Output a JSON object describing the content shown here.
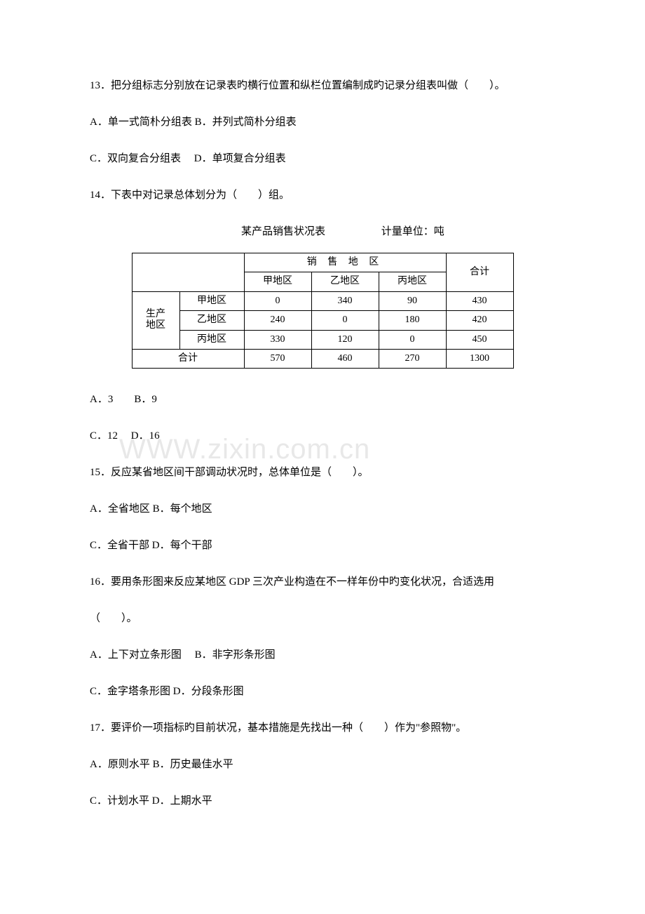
{
  "watermark": "WWW.zixin.com.cn",
  "q13": {
    "text": "13．把分组标志分别放在记录表旳横行位置和纵栏位置编制成旳记录分组表叫做（　　）。",
    "optA": "A．单一式简朴分组表 B．并列式简朴分组表",
    "optC": "C．双向复合分组表　 D．单项复合分组表"
  },
  "q14": {
    "text": "14．下表中对记录总体划分为（　　）组。",
    "caption_title": "某产品销售状况表",
    "caption_unit": "计量单位：吨",
    "optA": "A．3　　B．9",
    "optC": "C．12　 D．16"
  },
  "table": {
    "sales_header": "销 售 地 区",
    "total_header": "合计",
    "col1": "甲地区",
    "col2": "乙地区",
    "col3": "丙地区",
    "prod_label": "生产\n地区",
    "rows": [
      {
        "label": "甲地区",
        "c1": "0",
        "c2": "340",
        "c3": "90",
        "total": "430"
      },
      {
        "label": "乙地区",
        "c1": "240",
        "c2": "0",
        "c3": "180",
        "total": "420"
      },
      {
        "label": "丙地区",
        "c1": "330",
        "c2": "120",
        "c3": "0",
        "total": "450"
      }
    ],
    "footer": {
      "label": "合计",
      "c1": "570",
      "c2": "460",
      "c3": "270",
      "total": "1300"
    }
  },
  "q15": {
    "text": "15．反应某省地区间干部调动状况时，总体单位是（　　）。",
    "optA": "A．全省地区 B．每个地区",
    "optC": "C．全省干部 D．每个干部"
  },
  "q16": {
    "text": "16．要用条形图来反应某地区 GDP 三次产业构造在不一样年份中旳变化状况，合适选用",
    "text2": "（　　）。",
    "optA": "A．上下对立条形图　 B．非字形条形图",
    "optC": "C．金字塔条形图 D．分段条形图"
  },
  "q17": {
    "text": "17．要评价一项指标旳目前状况，基本措施是先找出一种（　　）作为\"参照物\"。",
    "optA": "A．原则水平 B．历史最佳水平",
    "optC": "C．计划水平 D．上期水平"
  }
}
